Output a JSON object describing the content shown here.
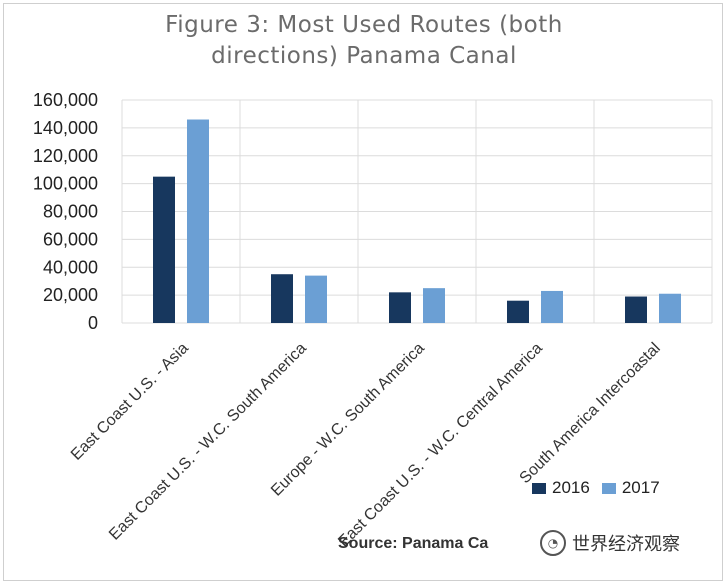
{
  "chart_data": {
    "type": "bar",
    "title_lines": [
      "Figure 3: Most Used Routes (both",
      "directions) Panama Canal"
    ],
    "categories": [
      "East Coast U.S. - Asia",
      "East Coast U.S. - W.C. South America",
      "Europe - W.C. South America",
      "East Coast U.S. - W.C. Central America",
      "South America Intercoastal"
    ],
    "series": [
      {
        "name": "2016",
        "color": "#17375e",
        "values": [
          105000,
          35000,
          22000,
          16000,
          19000
        ]
      },
      {
        "name": "2017",
        "color": "#6b9fd4",
        "values": [
          146000,
          34000,
          25000,
          23000,
          21000
        ]
      }
    ],
    "ylim": [
      0,
      160000
    ],
    "yticks": [
      "0",
      "20,000",
      "40,000",
      "60,000",
      "80,000",
      "100,000",
      "120,000",
      "140,000",
      "160,000"
    ],
    "grid": true,
    "legend_position": "bottom-right"
  },
  "source": "Source: Panama Ca",
  "watermark": "世界经济观察"
}
